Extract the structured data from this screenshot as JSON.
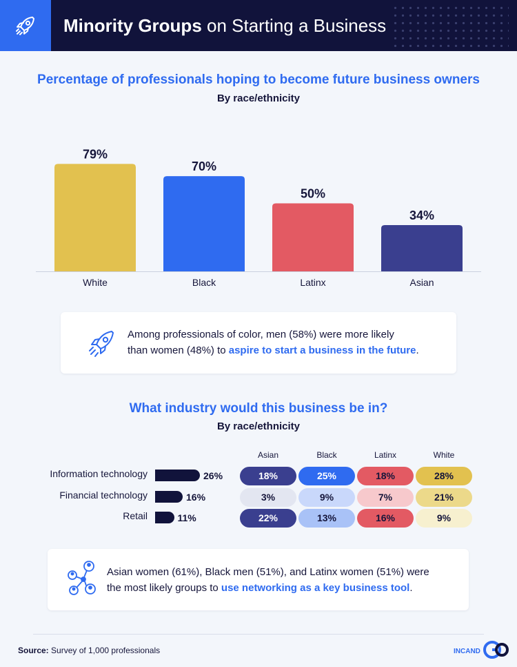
{
  "header": {
    "title_bold": "Minority Groups",
    "title_rest": " on Starting a Business",
    "icon": "rocket-icon"
  },
  "chart1": {
    "title": "Percentage of professionals hoping to become future business owners",
    "subtitle": "By race/ethnicity"
  },
  "chart_data": [
    {
      "type": "bar",
      "title": "Percentage of professionals hoping to become future business owners",
      "subtitle": "By race/ethnicity",
      "categories": [
        "White",
        "Black",
        "Latinx",
        "Asian"
      ],
      "values": [
        79,
        70,
        50,
        34
      ],
      "value_labels": [
        "79%",
        "70%",
        "50%",
        "34%"
      ],
      "colors": [
        "#e2c14f",
        "#2f6bf0",
        "#e35a63",
        "#3a3f8f"
      ],
      "ylim": [
        0,
        100
      ],
      "grid": false
    },
    {
      "type": "bar",
      "orientation": "horizontal",
      "title": "What industry would this business be in?",
      "subtitle": "By race/ethnicity",
      "categories": [
        "Information technology",
        "Financial technology",
        "Retail"
      ],
      "values": [
        26,
        16,
        11
      ],
      "value_labels": [
        "26%",
        "16%",
        "11%"
      ]
    },
    {
      "type": "table",
      "columns": [
        "Asian",
        "Black",
        "Latinx",
        "White"
      ],
      "rows": [
        "Information technology",
        "Financial technology",
        "Retail"
      ],
      "values": [
        [
          18,
          25,
          18,
          28
        ],
        [
          3,
          9,
          7,
          21
        ],
        [
          22,
          13,
          16,
          9
        ]
      ],
      "value_labels": [
        [
          "18%",
          "25%",
          "18%",
          "28%"
        ],
        [
          "3%",
          "9%",
          "7%",
          "21%"
        ],
        [
          "22%",
          "13%",
          "16%",
          "9%"
        ]
      ]
    }
  ],
  "callout1": {
    "icon": "rocket-icon",
    "line1": "Among professionals of color, men (58%) were more likely",
    "line2_pre": "than women (48%) to ",
    "line2_hl": "aspire to start a business in the future",
    "line2_post": "."
  },
  "chart2": {
    "title": "What industry would this business be in?",
    "subtitle": "By race/ethnicity"
  },
  "callout2": {
    "icon": "network-icon",
    "line1": "Asian women (61%), Black men (51%), and Latinx women (51%) were",
    "line2_pre": "the most likely groups to ",
    "line2_hl": "use networking as a key business tool",
    "line2_post": "."
  },
  "footer": {
    "source_label": "Source:",
    "source_text": " Survey of 1,000 professionals",
    "logo_text": "INCAND"
  },
  "colors": {
    "navy": "#11133b",
    "accent_blue": "#2f6bf0",
    "pill_colors": [
      [
        "#3a3f8f",
        "#2f6bf0",
        "#e35a63",
        "#e2c14f"
      ],
      [
        "#e3e6f1",
        "#c9d8fb",
        "#f7c9cc",
        "#ecd98a"
      ],
      [
        "#3a3f8f",
        "#a9c2f7",
        "#e35a63",
        "#f7f0cf"
      ]
    ],
    "pill_text": [
      [
        "#ffffff",
        "#ffffff",
        "#15153a",
        "#15153a"
      ],
      [
        "#15153a",
        "#15153a",
        "#15153a",
        "#15153a"
      ],
      [
        "#ffffff",
        "#15153a",
        "#15153a",
        "#15153a"
      ]
    ]
  }
}
